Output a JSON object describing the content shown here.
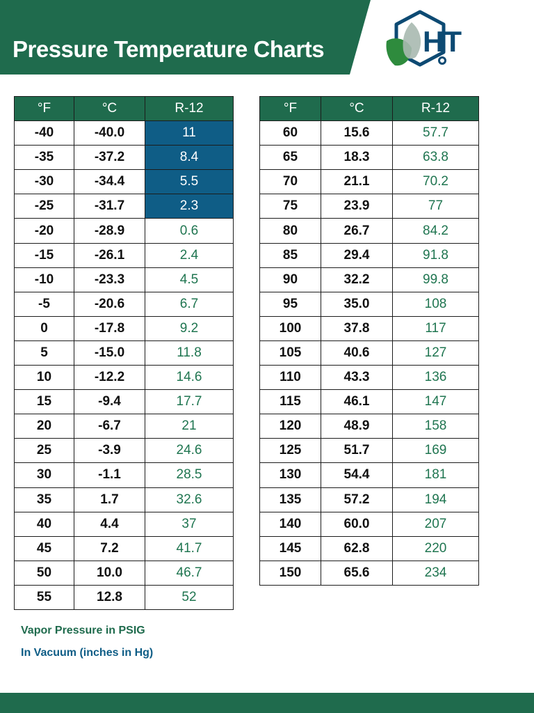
{
  "header": {
    "title": "Pressure Temperature Charts"
  },
  "logo": {
    "letters": "HT",
    "icon": "leaf-hexagon-logo"
  },
  "colors": {
    "brand_green": "#1f6b4d",
    "vacuum_blue": "#0f5d86",
    "value_green": "#1f7550"
  },
  "table_headers": {
    "f": "°F",
    "c": "°C",
    "refrigerant": "R-12"
  },
  "left_table": [
    {
      "f": "-40",
      "c": "-40.0",
      "p": "11",
      "vacuum": true
    },
    {
      "f": "-35",
      "c": "-37.2",
      "p": "8.4",
      "vacuum": true
    },
    {
      "f": "-30",
      "c": "-34.4",
      "p": "5.5",
      "vacuum": true
    },
    {
      "f": "-25",
      "c": "-31.7",
      "p": "2.3",
      "vacuum": true
    },
    {
      "f": "-20",
      "c": "-28.9",
      "p": "0.6",
      "vacuum": false
    },
    {
      "f": "-15",
      "c": "-26.1",
      "p": "2.4",
      "vacuum": false
    },
    {
      "f": "-10",
      "c": "-23.3",
      "p": "4.5",
      "vacuum": false
    },
    {
      "f": "-5",
      "c": "-20.6",
      "p": "6.7",
      "vacuum": false
    },
    {
      "f": "0",
      "c": "-17.8",
      "p": "9.2",
      "vacuum": false
    },
    {
      "f": "5",
      "c": "-15.0",
      "p": "11.8",
      "vacuum": false
    },
    {
      "f": "10",
      "c": "-12.2",
      "p": "14.6",
      "vacuum": false
    },
    {
      "f": "15",
      "c": "-9.4",
      "p": "17.7",
      "vacuum": false
    },
    {
      "f": "20",
      "c": "-6.7",
      "p": "21",
      "vacuum": false
    },
    {
      "f": "25",
      "c": "-3.9",
      "p": "24.6",
      "vacuum": false
    },
    {
      "f": "30",
      "c": "-1.1",
      "p": "28.5",
      "vacuum": false
    },
    {
      "f": "35",
      "c": "1.7",
      "p": "32.6",
      "vacuum": false
    },
    {
      "f": "40",
      "c": "4.4",
      "p": "37",
      "vacuum": false
    },
    {
      "f": "45",
      "c": "7.2",
      "p": "41.7",
      "vacuum": false
    },
    {
      "f": "50",
      "c": "10.0",
      "p": "46.7",
      "vacuum": false
    },
    {
      "f": "55",
      "c": "12.8",
      "p": "52",
      "vacuum": false
    }
  ],
  "right_table": [
    {
      "f": "60",
      "c": "15.6",
      "p": "57.7",
      "vacuum": false
    },
    {
      "f": "65",
      "c": "18.3",
      "p": "63.8",
      "vacuum": false
    },
    {
      "f": "70",
      "c": "21.1",
      "p": "70.2",
      "vacuum": false
    },
    {
      "f": "75",
      "c": "23.9",
      "p": "77",
      "vacuum": false
    },
    {
      "f": "80",
      "c": "26.7",
      "p": "84.2",
      "vacuum": false
    },
    {
      "f": "85",
      "c": "29.4",
      "p": "91.8",
      "vacuum": false
    },
    {
      "f": "90",
      "c": "32.2",
      "p": "99.8",
      "vacuum": false
    },
    {
      "f": "95",
      "c": "35.0",
      "p": "108",
      "vacuum": false
    },
    {
      "f": "100",
      "c": "37.8",
      "p": "117",
      "vacuum": false
    },
    {
      "f": "105",
      "c": "40.6",
      "p": "127",
      "vacuum": false
    },
    {
      "f": "110",
      "c": "43.3",
      "p": "136",
      "vacuum": false
    },
    {
      "f": "115",
      "c": "46.1",
      "p": "147",
      "vacuum": false
    },
    {
      "f": "120",
      "c": "48.9",
      "p": "158",
      "vacuum": false
    },
    {
      "f": "125",
      "c": "51.7",
      "p": "169",
      "vacuum": false
    },
    {
      "f": "130",
      "c": "54.4",
      "p": "181",
      "vacuum": false
    },
    {
      "f": "135",
      "c": "57.2",
      "p": "194",
      "vacuum": false
    },
    {
      "f": "140",
      "c": "60.0",
      "p": "207",
      "vacuum": false
    },
    {
      "f": "145",
      "c": "62.8",
      "p": "220",
      "vacuum": false
    },
    {
      "f": "150",
      "c": "65.6",
      "p": "234",
      "vacuum": false
    }
  ],
  "legend": {
    "psig": "Vapor Pressure in PSIG",
    "vacuum": "In Vacuum (inches in Hg)"
  }
}
